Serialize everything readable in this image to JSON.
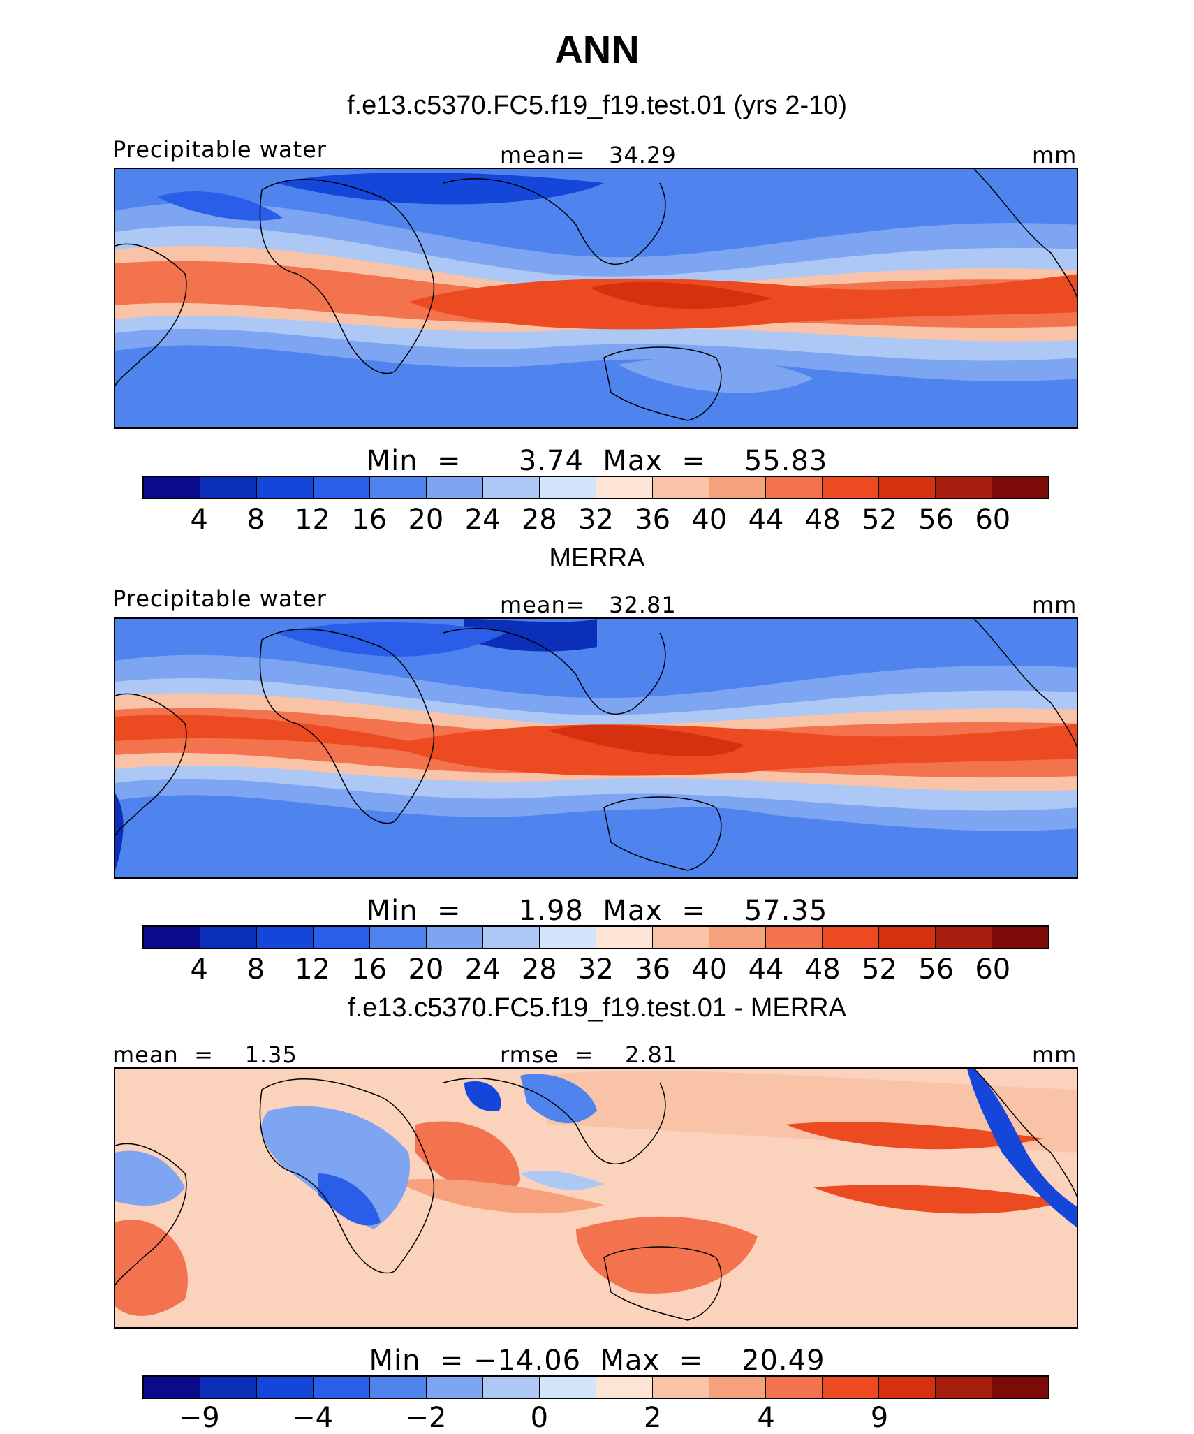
{
  "figure": {
    "title": "ANN"
  },
  "panels": [
    {
      "title": "f.e13.c5370.FC5.f19_f19.test.01 (yrs 2-10)",
      "left_label": "Precipitable water",
      "center_label": "mean=   34.29",
      "right_label": "mm",
      "stats": "Min  =      3.74  Max  =    55.83",
      "min": 3.74,
      "max": 55.83,
      "mean": 34.29
    },
    {
      "title": "MERRA",
      "left_label": "Precipitable water",
      "center_label": "mean=   32.81",
      "right_label": "mm",
      "stats": "Min  =      1.98  Max  =    57.35",
      "min": 1.98,
      "max": 57.35,
      "mean": 32.81
    },
    {
      "title": "f.e13.c5370.FC5.f19_f19.test.01 - MERRA",
      "left_label": "mean  =    1.35",
      "center_label": "rmse  =    2.81",
      "right_label": "mm",
      "stats": "Min  = −14.06  Max  =    20.49",
      "min": -14.06,
      "max": 20.49,
      "mean": 1.35,
      "rmse": 2.81
    }
  ],
  "colorbars": {
    "absolute": {
      "colors": [
        "#0b0a8a",
        "#0b2fb8",
        "#1446d9",
        "#2a5ee8",
        "#4f83ee",
        "#7ea5f2",
        "#aec8f6",
        "#d4e4fa",
        "#fde4d4",
        "#f9c3a8",
        "#f6a07c",
        "#f3734e",
        "#ec4a20",
        "#d6300f",
        "#a71d0e",
        "#7c0a07"
      ],
      "labels": [
        "4",
        "8",
        "12",
        "16",
        "20",
        "24",
        "28",
        "32",
        "36",
        "40",
        "44",
        "48",
        "52",
        "56",
        "60"
      ]
    },
    "difference": {
      "colors": [
        "#0b0a8a",
        "#0b2fb8",
        "#1446d9",
        "#2a5ee8",
        "#4f83ee",
        "#7ea5f2",
        "#aec8f6",
        "#d4e4fa",
        "#fde4d4",
        "#f9c3a8",
        "#f6a07c",
        "#f3734e",
        "#ec4a20",
        "#d6300f",
        "#a71d0e",
        "#7c0a07"
      ],
      "labels": [
        "−9",
        "−4",
        "−2",
        "0",
        "2",
        "4",
        "9"
      ],
      "label_boundaries": [
        1,
        3,
        5,
        7,
        9,
        11,
        13
      ]
    }
  }
}
